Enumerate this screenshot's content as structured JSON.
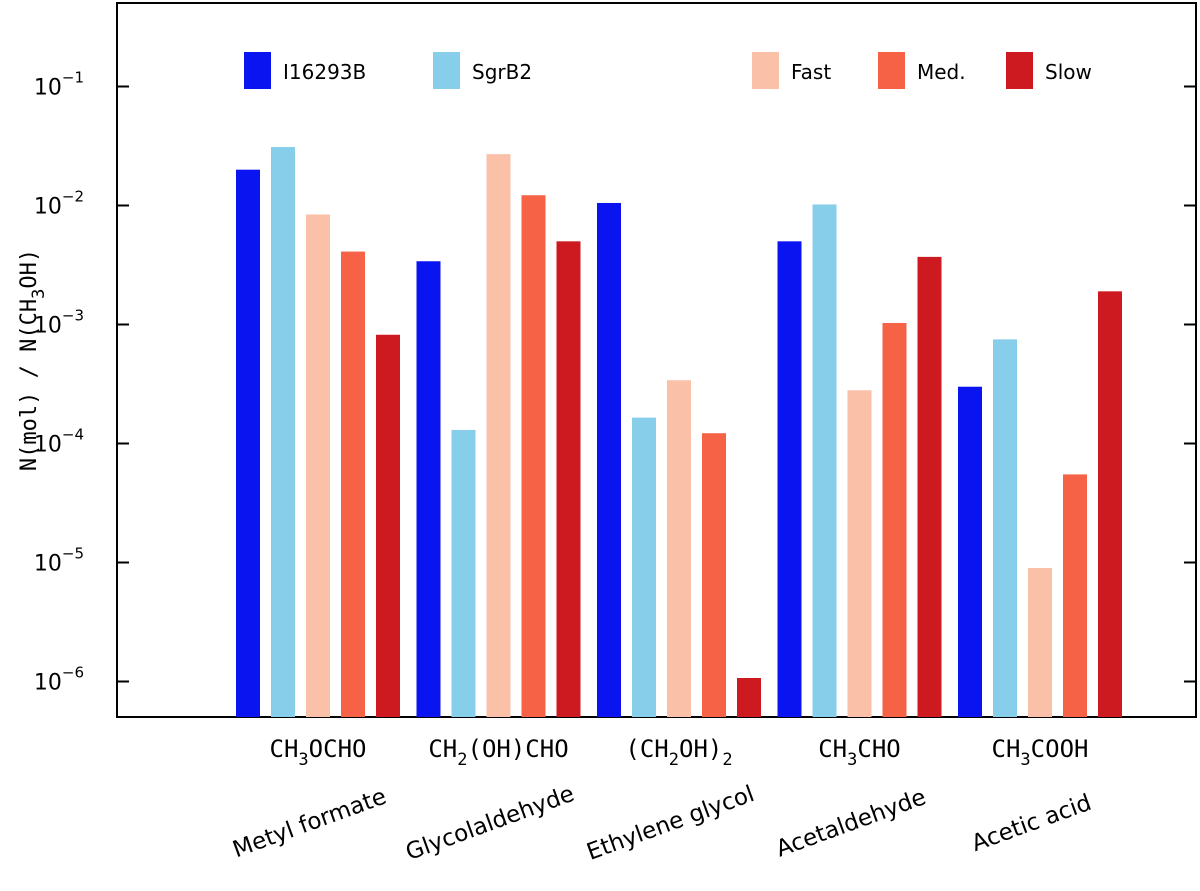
{
  "chart_data": {
    "type": "bar",
    "yscale": "log",
    "ylim": [
      5e-07,
      0.5
    ],
    "ylabel": {
      "prefix": "N(mol) / N(CH",
      "sub": "3",
      "suffix": "OH)"
    },
    "yticks": [
      {
        "base": "10",
        "exp": "−1",
        "value": 0.1
      },
      {
        "base": "10",
        "exp": "−2",
        "value": 0.01
      },
      {
        "base": "10",
        "exp": "−3",
        "value": 0.001
      },
      {
        "base": "10",
        "exp": "−4",
        "value": 0.0001
      },
      {
        "base": "10",
        "exp": "−5",
        "value": 1e-05
      },
      {
        "base": "10",
        "exp": "−6",
        "value": 1e-06
      }
    ],
    "categories": [
      {
        "formula": [
          {
            "t": "CH"
          },
          {
            "t": "3",
            "sub": true
          },
          {
            "t": "OCHO"
          }
        ],
        "name": "Metyl formate"
      },
      {
        "formula": [
          {
            "t": "CH"
          },
          {
            "t": "2",
            "sub": true
          },
          {
            "t": "(OH)CHO"
          }
        ],
        "name": "Glycolaldehyde"
      },
      {
        "formula": [
          {
            "t": "(CH"
          },
          {
            "t": "2",
            "sub": true
          },
          {
            "t": "OH)"
          },
          {
            "t": "2",
            "sub": true
          }
        ],
        "name": "Ethylene glycol"
      },
      {
        "formula": [
          {
            "t": "CH"
          },
          {
            "t": "3",
            "sub": true
          },
          {
            "t": "CHO"
          }
        ],
        "name": "Acetaldehyde"
      },
      {
        "formula": [
          {
            "t": "CH"
          },
          {
            "t": "3",
            "sub": true
          },
          {
            "t": "COOH"
          }
        ],
        "name": "Acetic acid"
      }
    ],
    "series": [
      {
        "name": "I16293B",
        "color": "#0a14f0",
        "values": [
          0.02,
          0.0034,
          0.0105,
          0.005,
          0.0003
        ]
      },
      {
        "name": "SgrB2",
        "color": "#87ceeb",
        "values": [
          0.031,
          0.00013,
          0.000165,
          0.0102,
          0.00075
        ]
      },
      {
        "name": "Fast",
        "color": "#fac0a8",
        "values": [
          0.0084,
          0.027,
          0.00034,
          0.00028,
          9e-06
        ]
      },
      {
        "name": "Med.",
        "color": "#f56245",
        "values": [
          0.0041,
          0.0122,
          0.000122,
          0.00103,
          5.5e-05
        ]
      },
      {
        "name": "Slow",
        "color": "#cd1a20",
        "values": [
          0.00082,
          0.005,
          1.07e-06,
          0.0037,
          0.0019
        ]
      }
    ],
    "legend_position": "top"
  }
}
